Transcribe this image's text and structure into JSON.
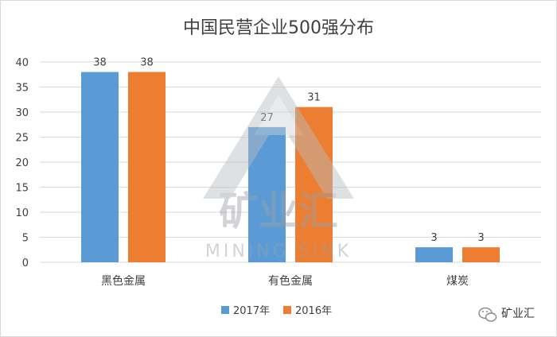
{
  "chart_data": {
    "type": "bar",
    "title": "中国民营企业500强分布",
    "categories": [
      "黑色金属",
      "有色金属",
      "煤炭"
    ],
    "series": [
      {
        "name": "2017年",
        "values": [
          38,
          27,
          3
        ],
        "color": "#5b9bd5"
      },
      {
        "name": "2016年",
        "values": [
          38,
          31,
          3
        ],
        "color": "#ed7d31"
      }
    ],
    "ylim": [
      0,
      40
    ],
    "yticks": [
      0,
      5,
      10,
      15,
      20,
      25,
      30,
      35,
      40
    ],
    "grid": true,
    "legend_position": "bottom"
  },
  "watermark": {
    "main": "矿业汇",
    "sub": "MINING SINK"
  },
  "brand": {
    "icon": "wechat-icon",
    "label": "矿业汇"
  }
}
